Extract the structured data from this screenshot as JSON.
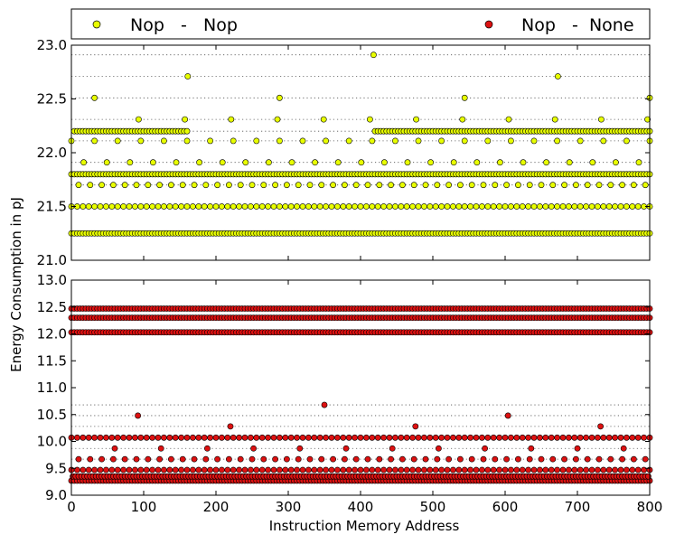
{
  "chart_data": [
    {
      "type": "scatter",
      "series": [
        {
          "name": "Nop - Nop",
          "color": "#e8ff00",
          "rows": [
            {
              "y": 21.25,
              "xstart": 0,
              "step": 4
            },
            {
              "y": 21.5,
              "xstart": 0,
              "step": 8
            },
            {
              "y": 21.7,
              "xstart": 10,
              "step": 16
            },
            {
              "y": 21.8,
              "xstart": 0,
              "step": 4
            },
            {
              "y": 21.91,
              "xstart": 17,
              "step": 32
            },
            {
              "y": 22.11,
              "xstart": 0,
              "step": 32
            },
            {
              "y": 22.2,
              "xstart": 4,
              "step": 4
            },
            {
              "y": 22.31,
              "xstart": 93,
              "step": 64
            },
            {
              "y": 22.51,
              "xstart": 32,
              "step": 256
            },
            {
              "y": 22.71,
              "xstart": 161,
              "step": 512
            },
            {
              "y": 22.91,
              "xstart": 418,
              "step": 1024
            }
          ],
          "gaps": [
            {
              "y": 22.2,
              "from": 160,
              "to": 418
            }
          ]
        }
      ],
      "ylim": [
        21.0,
        23.0
      ],
      "yticks": [
        "21.0",
        "21.5",
        "22.0",
        "22.5",
        "23.0"
      ],
      "xlim": [
        0,
        800
      ],
      "grid": "horizontal dotted lines at point levels"
    },
    {
      "type": "scatter",
      "series": [
        {
          "name": "Nop - None",
          "color": "#dd1111",
          "rows": [
            {
              "y": 9.27,
              "xstart": 0,
              "step": 4
            },
            {
              "y": 9.35,
              "xstart": 2,
              "step": 4
            },
            {
              "y": 9.47,
              "xstart": 0,
              "step": 8
            },
            {
              "y": 9.67,
              "xstart": 10,
              "step": 16
            },
            {
              "y": 9.87,
              "xstart": 60,
              "step": 64
            },
            {
              "y": 10.07,
              "xstart": 0,
              "step": 8
            },
            {
              "y": 10.28,
              "xstart": 220,
              "step": 256
            },
            {
              "y": 10.48,
              "xstart": 92,
              "step": 512
            },
            {
              "y": 10.68,
              "xstart": 350,
              "step": 1024
            },
            {
              "y": 12.03,
              "xstart": 0,
              "step": 4
            },
            {
              "y": 12.3,
              "xstart": 0,
              "step": 4
            },
            {
              "y": 12.47,
              "xstart": 0,
              "step": 4
            }
          ],
          "gaps": []
        }
      ],
      "ylim": [
        9.0,
        13.0
      ],
      "yticks": [
        "9.0",
        "9.5",
        "10.0",
        "10.5",
        "11.0",
        "11.5",
        "12.0",
        "12.5",
        "13.0"
      ],
      "xlim": [
        0,
        800
      ],
      "xticks": [
        "0",
        "100",
        "200",
        "300",
        "400",
        "500",
        "600",
        "700",
        "800"
      ],
      "grid": "horizontal dotted lines at point levels"
    }
  ],
  "legend": [
    {
      "label": "Nop   -   Nop",
      "color": "#e8ff00"
    },
    {
      "label": "Nop   -  None",
      "color": "#dd1111"
    }
  ],
  "xlabel": "Instruction Memory Address",
  "ylabel": "Energy Consumption in pJ"
}
